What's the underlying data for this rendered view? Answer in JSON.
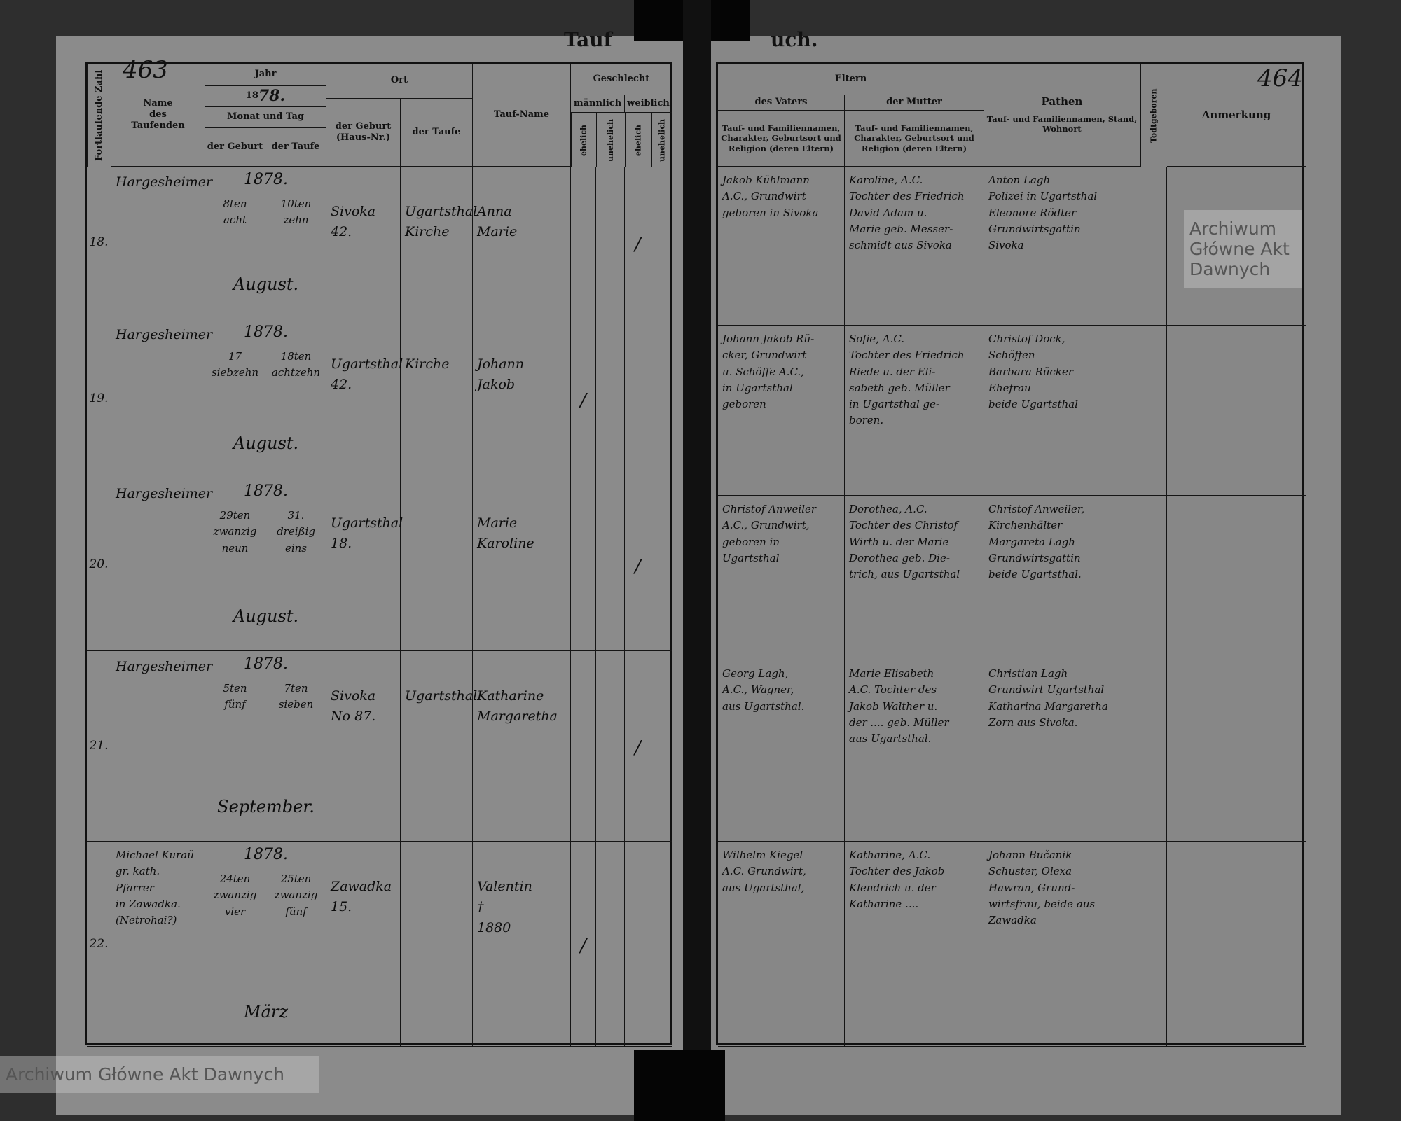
{
  "page_left": {
    "title_fragment": "Tauf",
    "page_number": "463",
    "header": {
      "seq": "Fortlaufende Zahl",
      "name": "Name\ndes\nTaufenden",
      "jahr": "Jahr",
      "year_prefix": "18",
      "year_hand": "78.",
      "monat_tag": "Monat und Tag",
      "date_birth": "der Geburt",
      "date_bapt": "der Taufe",
      "ort": "Ort",
      "ort_birth": "der Geburt\n(Haus-Nr.)",
      "ort_bapt": "der Taufe",
      "taufname": "Tauf-Name",
      "geschlecht": "Geschlecht",
      "maennlich": "männlich",
      "weiblich": "weiblich",
      "ehelich": "ehelich",
      "unehelich": "unehelich"
    },
    "rows": [
      {
        "seq": "18.",
        "name": "Hargesheimer",
        "year": "1878.",
        "birth": "8ten\nacht",
        "bapt": "10ten\nzehn",
        "month": "August.",
        "ort_birth": "Sivoka\n42.",
        "ort_bapt": "Ugartsthal\nKirche",
        "taufname": "Anna\nMarie",
        "m_e": "",
        "m_u": "",
        "w_e": "/",
        "w_u": ""
      },
      {
        "seq": "19.",
        "name": "Hargesheimer",
        "year": "1878.",
        "birth": "17\nsiebzehn",
        "bapt": "18ten\nachtzehn",
        "month": "August.",
        "ort_birth": "Ugartsthal\n42.",
        "ort_bapt": "Kirche",
        "taufname": "Johann\nJakob",
        "m_e": "/",
        "m_u": "",
        "w_e": "",
        "w_u": ""
      },
      {
        "seq": "20.",
        "name": "Hargesheimer",
        "year": "1878.",
        "birth": "29ten\nzwanzig neun",
        "bapt": "31.\ndreißig eins",
        "month": "August.",
        "ort_birth": "Ugartsthal\n18.",
        "ort_bapt": "",
        "taufname": "Marie\nKaroline",
        "m_e": "",
        "m_u": "",
        "w_e": "/",
        "w_u": ""
      },
      {
        "seq": "21.",
        "name": "Hargesheimer",
        "year": "1878.",
        "birth": "5ten\nfünf",
        "bapt": "7ten\nsieben",
        "month": "September.",
        "ort_birth": "Sivoka\nNo 87.",
        "ort_bapt": "Ugartsthal",
        "taufname": "Katharine\nMargaretha",
        "m_e": "",
        "m_u": "",
        "w_e": "/",
        "w_u": ""
      },
      {
        "seq": "22.",
        "name": "Michael Kuraü\ngr. kath. Pfarrer\nin Zawadka.\n(Netrohai?)",
        "year": "1878.",
        "birth": "24ten\nzwanzig vier",
        "bapt": "25ten\nzwanzig fünf",
        "month": "März",
        "ort_birth": "Zawadka\n15.",
        "ort_bapt": "",
        "taufname": "Valentin\n†\n1880",
        "m_e": "/",
        "m_u": "",
        "w_e": "",
        "w_u": ""
      }
    ]
  },
  "page_right": {
    "title_fragment": "uch.",
    "page_number": "464",
    "header": {
      "eltern": "Eltern",
      "vater": "des Vaters",
      "mutter": "der Mutter",
      "eltern_desc": "Tauf- und Familiennamen, Charakter, Geburtsort und Religion (deren Eltern)",
      "pathen": "Pathen",
      "pathen_desc": "Tauf- und Familiennamen, Stand,\nWohnort",
      "todtgeboren": "Todtgeboren",
      "anmerkung": "Anmerkung"
    },
    "rows": [
      {
        "vater": "Jakob Kühlmann\nA.C., Grundwirt\ngeboren in Sivoka",
        "mutter": "Karoline, A.C.\nTochter des Friedrich\nDavid Adam u.\nMarie geb. Messer-\nschmidt aus Sivoka",
        "pathen": "Anton Lagh\nPolizei in Ugartsthal\nEleonore Rödter\nGrundwirtsgattin\nSivoka",
        "todt": "",
        "anm": ""
      },
      {
        "vater": "Johann Jakob Rü-\ncker, Grundwirt\nu. Schöffe A.C.,\nin Ugartsthal geboren",
        "mutter": "Sofie, A.C.\nTochter des Friedrich\nRiede u. der Eli-\nsabeth geb. Müller\nin Ugartsthal ge-\nboren.",
        "pathen": "Christof Dock,\nSchöffen\nBarbara Rücker\nEhefrau\nbeide Ugartsthal",
        "todt": "",
        "anm": ""
      },
      {
        "vater": "Christof Anweiler\nA.C., Grundwirt,\ngeboren in Ugartsthal",
        "mutter": "Dorothea, A.C.\nTochter des Christof\nWirth u. der Marie\nDorothea geb. Die-\ntrich, aus Ugartsthal",
        "pathen": "Christof Anweiler,\nKirchenhälter\nMargareta Lagh\nGrundwirtsgattin\nbeide Ugartsthal.",
        "todt": "",
        "anm": ""
      },
      {
        "vater": "Georg Lagh,\nA.C., Wagner,\naus Ugartsthal.",
        "mutter": "Marie Elisabeth\nA.C. Tochter des\nJakob Walther u.\nder .... geb. Müller\naus Ugartsthal.",
        "pathen": "Christian Lagh\nGrundwirt Ugartsthal\nKatharina Margaretha\nZorn aus Sivoka.",
        "todt": "",
        "anm": ""
      },
      {
        "vater": "Wilhelm Kiegel\nA.C. Grundwirt,\naus Ugartsthal,",
        "mutter": "Katharine, A.C.\nTochter des Jakob\nKlendrich u. der\nKatharine ....",
        "pathen": "Johann Bučanik\nSchuster, Olexa\nHawran, Grund-\nwirtsfrau, beide aus\nZawadka",
        "todt": "",
        "anm": ""
      }
    ]
  },
  "watermarks": {
    "archive_name": "Archiwum Główne Akt Dawnych"
  },
  "colors": {
    "paper": "#8b8b8b",
    "ink": "#111111",
    "background": "#2e2e2e"
  }
}
